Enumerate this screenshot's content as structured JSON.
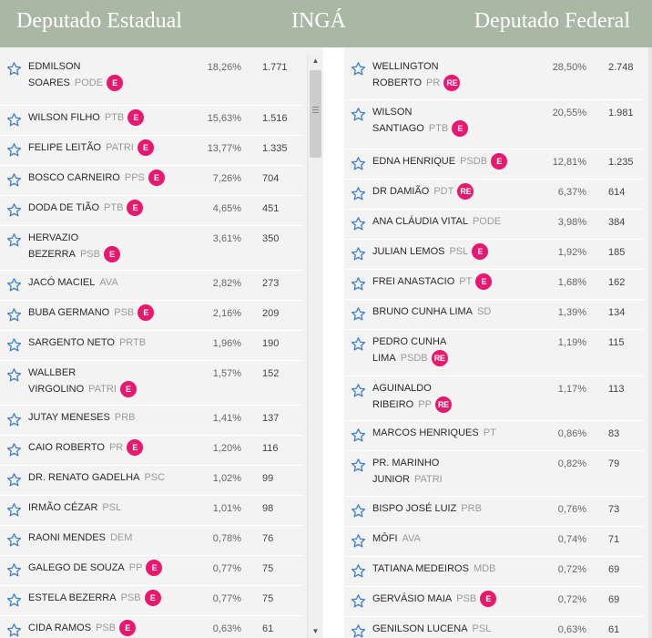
{
  "header": {
    "left_title": "Deputado Estadual",
    "center_title": "INGÁ",
    "right_title": "Deputado Federal"
  },
  "colors": {
    "header_bg": "#a8b8a4",
    "badge": "#e8186e",
    "star": "#3a7fd0",
    "panel_bg": "#f3f3f3"
  },
  "icons": {
    "favorite": "star-outline-icon",
    "scroll_up": "arrow-up-icon",
    "scroll_down": "arrow-down-icon"
  },
  "estadual": [
    {
      "line1": "EDMILSON",
      "line2": "SOARES",
      "party": "PODE",
      "badge": "E",
      "pct": "18,26%",
      "votes": "1.771"
    },
    {
      "line1": "WILSON FILHO",
      "line2": "",
      "party": "PTB",
      "badge": "E",
      "pct": "15,63%",
      "votes": "1.516"
    },
    {
      "line1": "FELIPE LEITÃO",
      "line2": "",
      "party": "PATRI",
      "badge": "E",
      "pct": "13,77%",
      "votes": "1.335"
    },
    {
      "line1": "BOSCO CARNEIRO",
      "line2": "",
      "party": "PPS",
      "badge": "E",
      "pct": "7,26%",
      "votes": "704"
    },
    {
      "line1": "DODA DE TIÃO",
      "line2": "",
      "party": "PTB",
      "badge": "E",
      "pct": "4,65%",
      "votes": "451"
    },
    {
      "line1": "HERVAZIO",
      "line2": "BEZERRA",
      "party": "PSB",
      "badge": "E",
      "pct": "3,61%",
      "votes": "350"
    },
    {
      "line1": "JACÓ MACIEL",
      "line2": "",
      "party": "AVA",
      "badge": "",
      "pct": "2,82%",
      "votes": "273"
    },
    {
      "line1": "BUBA GERMANO",
      "line2": "",
      "party": "PSB",
      "badge": "E",
      "pct": "2,16%",
      "votes": "209"
    },
    {
      "line1": "SARGENTO NETO",
      "line2": "",
      "party": "PRTB",
      "badge": "",
      "pct": "1,96%",
      "votes": "190"
    },
    {
      "line1": "WALLBER",
      "line2": "VIRGOLINO",
      "party": "PATRI",
      "badge": "E",
      "pct": "1,57%",
      "votes": "152"
    },
    {
      "line1": "JUTAY MENESES",
      "line2": "",
      "party": "PRB",
      "badge": "",
      "pct": "1,41%",
      "votes": "137"
    },
    {
      "line1": "CAIO ROBERTO",
      "line2": "",
      "party": "PR",
      "badge": "E",
      "pct": "1,20%",
      "votes": "116"
    },
    {
      "line1": "DR. RENATO GADELHA",
      "line2": "",
      "party": "PSC",
      "badge": "",
      "pct": "1,02%",
      "votes": "99"
    },
    {
      "line1": "IRMÃO CÉZAR",
      "line2": "",
      "party": "PSL",
      "badge": "",
      "pct": "1,01%",
      "votes": "98"
    },
    {
      "line1": "RAONI MENDES",
      "line2": "",
      "party": "DEM",
      "badge": "",
      "pct": "0,78%",
      "votes": "76"
    },
    {
      "line1": "GALEGO DE SOUZA",
      "line2": "",
      "party": "PP",
      "badge": "E",
      "pct": "0,77%",
      "votes": "75"
    },
    {
      "line1": "ESTELA BEZERRA",
      "line2": "",
      "party": "PSB",
      "badge": "E",
      "pct": "0,77%",
      "votes": "75"
    },
    {
      "line1": "CIDA RAMOS",
      "line2": "",
      "party": "PSB",
      "badge": "E",
      "pct": "0,63%",
      "votes": "61"
    }
  ],
  "federal": [
    {
      "line1": "WELLINGTON",
      "line2": "ROBERTO",
      "party": "PR",
      "badge": "RE",
      "pct": "28,50%",
      "votes": "2.748"
    },
    {
      "line1": "WILSON",
      "line2": "SANTIAGO",
      "party": "PTB",
      "badge": "E",
      "pct": "20,55%",
      "votes": "1.981"
    },
    {
      "line1": "EDNA HENRIQUE",
      "line2": "",
      "party": "PSDB",
      "badge": "E",
      "pct": "12,81%",
      "votes": "1.235"
    },
    {
      "line1": "DR DAMIÃO",
      "line2": "",
      "party": "PDT",
      "badge": "RE",
      "pct": "6,37%",
      "votes": "614"
    },
    {
      "line1": "ANA CLÁUDIA VITAL",
      "line2": "",
      "party": "PODE",
      "badge": "",
      "pct": "3,98%",
      "votes": "384"
    },
    {
      "line1": "JULIAN LEMOS",
      "line2": "",
      "party": "PSL",
      "badge": "E",
      "pct": "1,92%",
      "votes": "185"
    },
    {
      "line1": "FREI ANASTACIO",
      "line2": "",
      "party": "PT",
      "badge": "E",
      "pct": "1,68%",
      "votes": "162"
    },
    {
      "line1": "BRUNO CUNHA LIMA",
      "line2": "",
      "party": "SD",
      "badge": "",
      "pct": "1,39%",
      "votes": "134"
    },
    {
      "line1": "PEDRO CUNHA",
      "line2": "LIMA",
      "party": "PSDB",
      "badge": "RE",
      "pct": "1,19%",
      "votes": "115"
    },
    {
      "line1": "AGUINALDO",
      "line2": "RIBEIRO",
      "party": "PP",
      "badge": "RE",
      "pct": "1,17%",
      "votes": "113"
    },
    {
      "line1": "MARCOS HENRIQUES",
      "line2": "",
      "party": "PT",
      "badge": "",
      "pct": "0,86%",
      "votes": "83"
    },
    {
      "line1": "PR. MARINHO",
      "line2": "JUNIOR",
      "party": "PATRI",
      "badge": "",
      "pct": "0,82%",
      "votes": "79"
    },
    {
      "line1": "BISPO JOSÉ LUIZ",
      "line2": "",
      "party": "PRB",
      "badge": "",
      "pct": "0,76%",
      "votes": "73"
    },
    {
      "line1": "MÔFI",
      "line2": "",
      "party": "AVA",
      "badge": "",
      "pct": "0,74%",
      "votes": "71"
    },
    {
      "line1": "TATIANA MEDEIROS",
      "line2": "",
      "party": "MDB",
      "badge": "",
      "pct": "0,72%",
      "votes": "69"
    },
    {
      "line1": "GERVÁSIO MAIA",
      "line2": "",
      "party": "PSB",
      "badge": "E",
      "pct": "0,72%",
      "votes": "69"
    },
    {
      "line1": "GENILSON LUCENA",
      "line2": "",
      "party": "PSL",
      "badge": "",
      "pct": "0,63%",
      "votes": "61"
    }
  ]
}
